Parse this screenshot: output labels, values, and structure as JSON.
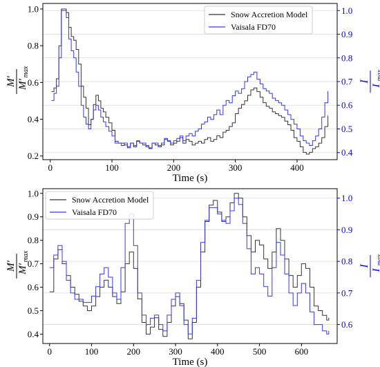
{
  "chart_data": [
    {
      "type": "line",
      "title": "",
      "xlabel": "Time (s)",
      "ylabel_left": {
        "numerator": "M′",
        "denominator": "M′",
        "subscript": "max"
      },
      "ylabel_right": {
        "numerator": "I",
        "denominator": "I",
        "subscript": "max"
      },
      "xlim": [
        -12,
        465
      ],
      "ylim_left": [
        0.18,
        1.03
      ],
      "ylim_right": [
        0.37,
        1.03
      ],
      "xticks": [
        0,
        100,
        200,
        300,
        400
      ],
      "yticks_left": [
        0.2,
        0.4,
        0.6,
        0.8,
        1.0
      ],
      "yticks_right": [
        0.4,
        0.5,
        0.6,
        0.7,
        0.8,
        0.9,
        1.0
      ],
      "grid": true,
      "legend_position": "top-right",
      "series": [
        {
          "name": "Snow Accretion Model",
          "color": "#333333",
          "axis": "left",
          "x": [
            2,
            6,
            10,
            14,
            18,
            22,
            26,
            30,
            34,
            38,
            42,
            46,
            50,
            54,
            58,
            62,
            66,
            70,
            74,
            78,
            82,
            86,
            90,
            95,
            100,
            105,
            110,
            115,
            120,
            125,
            130,
            135,
            140,
            145,
            150,
            155,
            160,
            165,
            170,
            175,
            180,
            185,
            190,
            195,
            200,
            205,
            210,
            215,
            220,
            225,
            230,
            235,
            240,
            245,
            250,
            255,
            260,
            265,
            270,
            275,
            280,
            285,
            290,
            295,
            300,
            305,
            310,
            315,
            320,
            325,
            330,
            335,
            340,
            345,
            350,
            355,
            360,
            365,
            370,
            375,
            380,
            385,
            390,
            395,
            400,
            405,
            410,
            415,
            420,
            425,
            430,
            435,
            440,
            445,
            450
          ],
          "y": [
            0.55,
            0.57,
            0.62,
            0.8,
            1.0,
            1.0,
            0.98,
            0.9,
            0.85,
            0.83,
            0.78,
            0.7,
            0.58,
            0.52,
            0.46,
            0.37,
            0.4,
            0.48,
            0.53,
            0.5,
            0.46,
            0.44,
            0.41,
            0.38,
            0.34,
            0.28,
            0.27,
            0.27,
            0.26,
            0.25,
            0.27,
            0.25,
            0.28,
            0.27,
            0.26,
            0.25,
            0.24,
            0.27,
            0.26,
            0.25,
            0.26,
            0.29,
            0.28,
            0.26,
            0.27,
            0.28,
            0.3,
            0.27,
            0.29,
            0.28,
            0.26,
            0.27,
            0.28,
            0.27,
            0.29,
            0.3,
            0.28,
            0.29,
            0.31,
            0.3,
            0.33,
            0.34,
            0.36,
            0.38,
            0.43,
            0.46,
            0.48,
            0.5,
            0.53,
            0.56,
            0.57,
            0.55,
            0.52,
            0.49,
            0.47,
            0.46,
            0.44,
            0.43,
            0.42,
            0.41,
            0.39,
            0.37,
            0.34,
            0.3,
            0.28,
            0.25,
            0.22,
            0.21,
            0.22,
            0.24,
            0.25,
            0.27,
            0.3,
            0.36,
            0.42
          ]
        },
        {
          "name": "Vaisala FD70",
          "color": "#3333ff",
          "axis": "right",
          "x": [
            2,
            6,
            10,
            14,
            18,
            22,
            26,
            30,
            34,
            38,
            42,
            46,
            50,
            54,
            58,
            62,
            66,
            70,
            74,
            78,
            82,
            86,
            90,
            95,
            100,
            105,
            110,
            115,
            120,
            125,
            130,
            135,
            140,
            145,
            150,
            155,
            160,
            165,
            170,
            175,
            180,
            185,
            190,
            195,
            200,
            205,
            210,
            215,
            220,
            225,
            230,
            235,
            240,
            245,
            250,
            255,
            260,
            265,
            270,
            275,
            280,
            285,
            290,
            295,
            300,
            305,
            310,
            315,
            320,
            325,
            330,
            335,
            340,
            345,
            350,
            355,
            360,
            365,
            370,
            375,
            380,
            385,
            390,
            395,
            400,
            405,
            410,
            415,
            420,
            425,
            430,
            435,
            440,
            445,
            450
          ],
          "y": [
            0.62,
            0.65,
            0.68,
            0.8,
            1.0,
            1.0,
            0.97,
            0.88,
            0.83,
            0.8,
            0.74,
            0.68,
            0.6,
            0.55,
            0.52,
            0.5,
            0.54,
            0.58,
            0.6,
            0.58,
            0.55,
            0.53,
            0.51,
            0.49,
            0.47,
            0.44,
            0.44,
            0.43,
            0.44,
            0.42,
            0.44,
            0.43,
            0.45,
            0.44,
            0.44,
            0.43,
            0.42,
            0.44,
            0.44,
            0.43,
            0.44,
            0.46,
            0.45,
            0.44,
            0.45,
            0.46,
            0.47,
            0.45,
            0.47,
            0.48,
            0.47,
            0.49,
            0.5,
            0.52,
            0.53,
            0.55,
            0.54,
            0.56,
            0.58,
            0.56,
            0.6,
            0.62,
            0.61,
            0.64,
            0.66,
            0.65,
            0.67,
            0.7,
            0.72,
            0.73,
            0.74,
            0.71,
            0.69,
            0.67,
            0.66,
            0.65,
            0.63,
            0.62,
            0.61,
            0.6,
            0.58,
            0.56,
            0.54,
            0.52,
            0.5,
            0.47,
            0.45,
            0.44,
            0.43,
            0.45,
            0.47,
            0.5,
            0.55,
            0.61,
            0.66
          ]
        }
      ]
    },
    {
      "type": "line",
      "title": "",
      "xlabel": "Time (s)",
      "ylabel_left": {
        "numerator": "M′",
        "denominator": "M′",
        "subscript": "max"
      },
      "ylabel_right": {
        "numerator": "I",
        "denominator": "I",
        "subscript": "max"
      },
      "xlim": [
        -16,
        685
      ],
      "ylim_left": [
        0.36,
        1.02
      ],
      "ylim_right": [
        0.54,
        1.03
      ],
      "xticks": [
        0,
        100,
        200,
        300,
        400,
        500,
        600
      ],
      "yticks_left": [
        0.4,
        0.5,
        0.6,
        0.7,
        0.8,
        0.9,
        1.0
      ],
      "yticks_right": [
        0.6,
        0.7,
        0.8,
        0.9,
        1.0
      ],
      "grid": true,
      "legend_position": "top-left",
      "series": [
        {
          "name": "Snow Accretion Model",
          "color": "#333333",
          "axis": "left",
          "x": [
            0,
            10,
            20,
            30,
            40,
            50,
            60,
            70,
            80,
            90,
            100,
            110,
            120,
            130,
            140,
            150,
            160,
            170,
            180,
            190,
            200,
            210,
            220,
            230,
            240,
            250,
            260,
            270,
            280,
            290,
            300,
            310,
            320,
            330,
            340,
            350,
            360,
            370,
            380,
            390,
            400,
            410,
            420,
            430,
            440,
            450,
            460,
            470,
            480,
            490,
            500,
            510,
            520,
            530,
            540,
            550,
            560,
            570,
            580,
            590,
            600,
            610,
            620,
            630,
            640,
            650,
            660,
            665
          ],
          "y": [
            0.58,
            0.72,
            0.76,
            0.7,
            0.65,
            0.6,
            0.57,
            0.54,
            0.52,
            0.5,
            0.52,
            0.56,
            0.6,
            0.63,
            0.6,
            0.56,
            0.53,
            0.58,
            0.7,
            0.75,
            0.68,
            0.55,
            0.45,
            0.4,
            0.43,
            0.47,
            0.42,
            0.39,
            0.45,
            0.52,
            0.56,
            0.53,
            0.46,
            0.38,
            0.45,
            0.6,
            0.75,
            0.88,
            0.95,
            0.97,
            0.92,
            0.88,
            0.9,
            0.96,
            1.0,
            0.98,
            0.9,
            0.82,
            0.75,
            0.8,
            0.78,
            0.72,
            0.68,
            0.75,
            0.85,
            0.8,
            0.72,
            0.65,
            0.6,
            0.65,
            0.7,
            0.68,
            0.6,
            0.52,
            0.5,
            0.48,
            0.46,
            0.47
          ]
        },
        {
          "name": "Vaisala FD70",
          "color": "#3333ff",
          "axis": "right",
          "x": [
            0,
            10,
            20,
            30,
            40,
            50,
            60,
            70,
            80,
            90,
            100,
            110,
            120,
            130,
            140,
            150,
            160,
            170,
            180,
            190,
            200,
            210,
            220,
            230,
            240,
            250,
            260,
            270,
            280,
            290,
            300,
            310,
            320,
            330,
            340,
            350,
            360,
            370,
            380,
            390,
            400,
            410,
            420,
            430,
            440,
            450,
            460,
            470,
            480,
            490,
            500,
            510,
            520,
            530,
            540,
            550,
            560,
            570,
            580,
            590,
            600,
            610,
            620,
            630,
            640,
            650,
            660,
            665
          ],
          "y": [
            0.78,
            0.82,
            0.85,
            0.8,
            0.74,
            0.7,
            0.68,
            0.68,
            0.67,
            0.67,
            0.69,
            0.72,
            0.76,
            0.78,
            0.75,
            0.7,
            0.68,
            0.78,
            0.92,
            0.95,
            0.85,
            0.7,
            0.63,
            0.6,
            0.62,
            0.63,
            0.6,
            0.58,
            0.63,
            0.68,
            0.7,
            0.66,
            0.6,
            0.57,
            0.62,
            0.74,
            0.86,
            0.93,
            0.97,
            0.97,
            0.95,
            0.93,
            0.92,
            0.96,
            1.0,
            0.98,
            0.92,
            0.84,
            0.76,
            0.78,
            0.76,
            0.72,
            0.69,
            0.78,
            0.86,
            0.82,
            0.76,
            0.7,
            0.66,
            0.7,
            0.73,
            0.7,
            0.64,
            0.6,
            0.6,
            0.58,
            0.57,
            0.58
          ]
        }
      ]
    }
  ]
}
